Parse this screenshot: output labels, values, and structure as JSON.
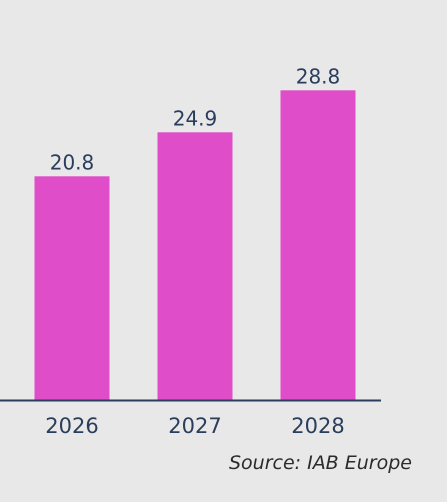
{
  "chart_data": {
    "type": "bar",
    "categories": [
      "2026",
      "2027",
      "2028"
    ],
    "values": [
      20.8,
      24.9,
      28.8
    ],
    "title": "",
    "xlabel": "",
    "ylabel": "",
    "ylim": [
      0,
      37.2
    ],
    "grid": false,
    "legend": "none",
    "bar_color": "#e04dc9",
    "axis_color": "#2a3d5c"
  },
  "source": "Source: IAB Europe"
}
